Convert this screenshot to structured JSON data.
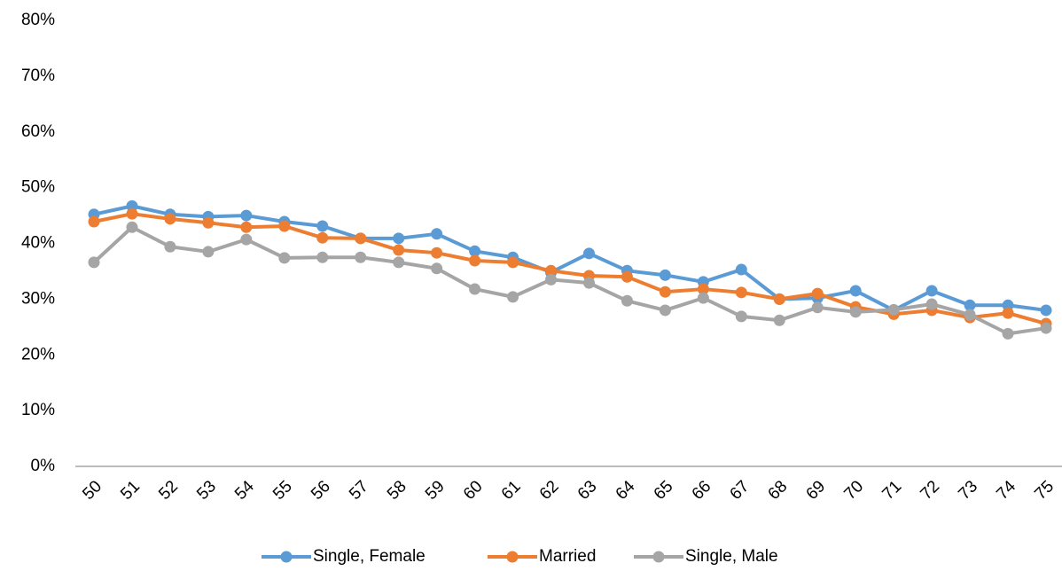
{
  "chart_data": {
    "type": "line",
    "categories": [
      "50",
      "51",
      "52",
      "53",
      "54",
      "55",
      "56",
      "57",
      "58",
      "59",
      "60",
      "61",
      "62",
      "63",
      "64",
      "65",
      "66",
      "67",
      "68",
      "69",
      "70",
      "71",
      "72",
      "73",
      "74",
      "75"
    ],
    "series": [
      {
        "name": "Single, Female",
        "color": "#5b9bd5",
        "values": [
          45.2,
          46.7,
          45.2,
          44.8,
          45.0,
          43.9,
          43.1,
          40.9,
          40.9,
          41.7,
          38.6,
          37.5,
          34.8,
          38.2,
          35.1,
          34.3,
          33.1,
          35.3,
          30.0,
          30.2,
          31.5,
          28.0,
          31.5,
          28.9,
          28.9,
          28.0
        ]
      },
      {
        "name": "Married",
        "color": "#ed7d31",
        "values": [
          43.9,
          45.3,
          44.4,
          43.7,
          42.9,
          43.1,
          41.0,
          40.9,
          38.8,
          38.3,
          36.9,
          36.6,
          35.1,
          34.2,
          34.0,
          31.3,
          31.8,
          31.2,
          30.0,
          31.0,
          28.6,
          27.3,
          28.0,
          26.7,
          27.5,
          25.6
        ]
      },
      {
        "name": "Single, Male",
        "color": "#a5a5a5",
        "values": [
          36.6,
          42.9,
          39.4,
          38.5,
          40.7,
          37.4,
          37.5,
          37.5,
          36.6,
          35.5,
          31.8,
          30.4,
          33.5,
          32.9,
          29.7,
          28.0,
          30.2,
          26.9,
          26.2,
          28.5,
          27.7,
          28.1,
          29.1,
          27.2,
          23.8,
          24.8
        ]
      }
    ],
    "ylim": [
      0,
      80
    ],
    "yticks": [
      {
        "value": 0,
        "label": "0%"
      },
      {
        "value": 10,
        "label": "10%"
      },
      {
        "value": 20,
        "label": "20%"
      },
      {
        "value": 30,
        "label": "30%"
      },
      {
        "value": 40,
        "label": "40%"
      },
      {
        "value": 50,
        "label": "50%"
      },
      {
        "value": 60,
        "label": "60%"
      },
      {
        "value": 70,
        "label": "70%"
      },
      {
        "value": 80,
        "label": "80%"
      }
    ],
    "grid": false,
    "legend": "bottom"
  }
}
